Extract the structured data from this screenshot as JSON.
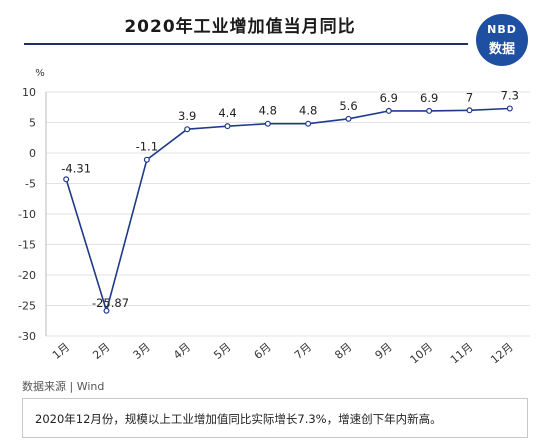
{
  "header": {
    "title": "2020年工业增加值当月同比",
    "logo_top": "NBD",
    "logo_bottom": "数据"
  },
  "colors": {
    "line": "#1f3a8a",
    "rule": "#1f2f6a",
    "logo": "#1f4fa0",
    "grid": "#e3e3e3"
  },
  "chart_data": {
    "type": "line",
    "title": "2020年工业增加值当月同比",
    "ylabel": "%",
    "categories": [
      "1月",
      "2月",
      "3月",
      "4月",
      "5月",
      "6月",
      "7月",
      "8月",
      "9月",
      "10月",
      "11月",
      "12月"
    ],
    "values": [
      -4.31,
      -25.87,
      -1.1,
      3.9,
      4.4,
      4.8,
      4.8,
      5.6,
      6.9,
      6.9,
      7,
      7.3
    ],
    "value_labels": [
      "-4.31",
      "-25.87",
      "-1.1",
      "3.9",
      "4.4",
      "4.8",
      "4.8",
      "5.6",
      "6.9",
      "6.9",
      "7",
      "7.3"
    ],
    "ylim": [
      -30,
      10
    ],
    "yticks": [
      10,
      5,
      0,
      -5,
      -10,
      -15,
      -20,
      -25,
      -30
    ],
    "grid": true,
    "legend": "none"
  },
  "footer": {
    "source": "数据来源 | Wind",
    "note": "2020年12月份，规模以上工业增加值同比实际增长7.3%，增速创下年内新高。"
  }
}
